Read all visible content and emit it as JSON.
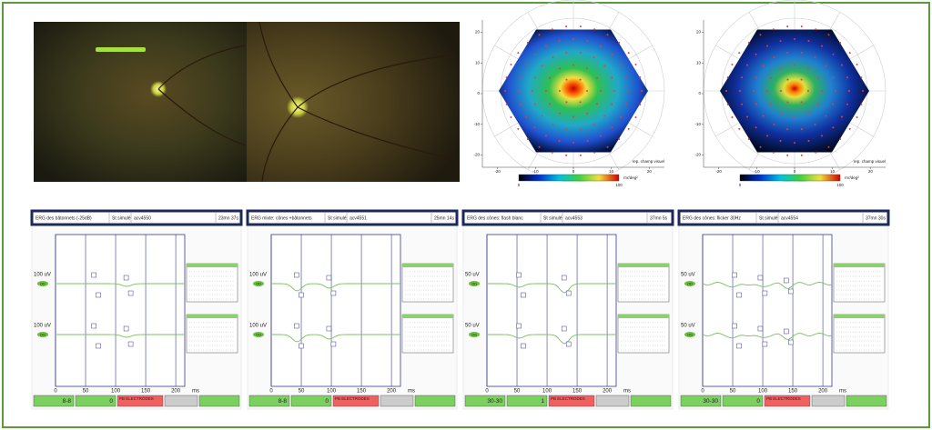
{
  "maps": [
    {
      "yticks": [
        -20,
        -10,
        0,
        10,
        20
      ],
      "xticks": [
        -20,
        -10,
        0,
        10,
        20
      ],
      "lim": [
        -24,
        24
      ],
      "scale_min": "0",
      "scale_max": "100",
      "unit": "nV/deg²",
      "note": "rep. champ visuel"
    },
    {
      "yticks": [
        -20,
        -10,
        0,
        10,
        20
      ],
      "xticks": [
        -20,
        -10,
        0,
        10,
        20
      ],
      "lim": [
        -24,
        24
      ],
      "scale_min": "0",
      "scale_max": "100",
      "unit": "nV/deg²",
      "note": "rep. champ visuel"
    }
  ],
  "panels": [
    {
      "title": "ERG des bâtonnets (-25dB)",
      "stim": "St simulé",
      "file": "acv4550",
      "time": "23mn 37s",
      "ylabel": "100 uV",
      "eyes": [
        "OD",
        "OG"
      ],
      "xlim": [
        0,
        215
      ],
      "xticks": [
        0,
        50,
        100,
        150,
        200
      ],
      "xunit": "ms",
      "count": "8-8",
      "rejects": "0",
      "status": "PB ELECTRODES"
    },
    {
      "title": "ERG mixte: cônes +bâtonnets",
      "stim": "St simulé",
      "file": "acv4551",
      "time": "25mn 14s",
      "ylabel": "100 uV",
      "eyes": [
        "OD",
        "OG"
      ],
      "xlim": [
        0,
        215
      ],
      "xticks": [
        0,
        50,
        100,
        150,
        200
      ],
      "xunit": "ms",
      "count": "8-8",
      "rejects": "0",
      "status": "PB ELECTRODES"
    },
    {
      "title": "ERG des cônes: flash blanc",
      "stim": "St simulé",
      "file": "acv4553",
      "time": "37mn 5s",
      "ylabel": "50 uV",
      "eyes": [
        "OD",
        "OG"
      ],
      "xlim": [
        0,
        215
      ],
      "xticks": [
        0,
        50,
        100,
        150,
        200
      ],
      "xunit": "ms",
      "count": "30-30",
      "rejects": "1",
      "status": "PB ELECTRODES"
    },
    {
      "title": "ERG des cônes: flicker 30Hz",
      "stim": "St simulé",
      "file": "acv4554",
      "time": "37mn 30s",
      "ylabel": "50 uV",
      "eyes": [
        "OD",
        "OG"
      ],
      "xlim": [
        0,
        215
      ],
      "xticks": [
        0,
        50,
        100,
        150,
        200
      ],
      "xunit": "ms",
      "count": "30-30",
      "rejects": "0",
      "status": "PB ELECTRODES"
    }
  ]
}
